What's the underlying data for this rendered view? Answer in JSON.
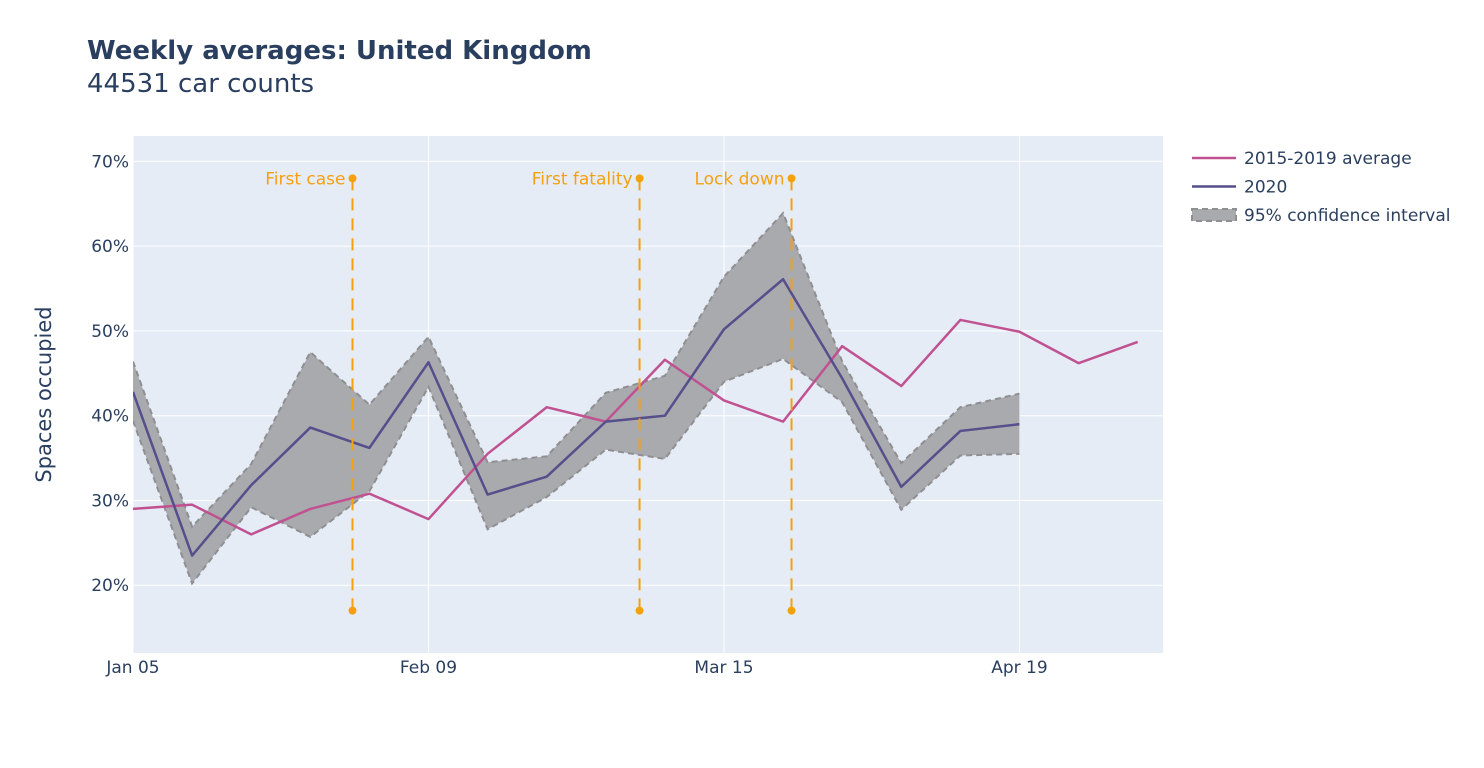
{
  "chart_data": {
    "type": "line",
    "title": "Weekly averages: United Kingdom",
    "subtitle": "44531 car counts",
    "ylabel": "Spaces occupied",
    "xlabel": "",
    "x_tick_labels": [
      "Jan 05",
      "Feb 09",
      "Mar 15",
      "Apr 19"
    ],
    "x_tick_dates": [
      "2020-01-05",
      "2020-02-09",
      "2020-03-15",
      "2020-04-19"
    ],
    "y_tick_labels": [
      "20%",
      "30%",
      "40%",
      "50%",
      "60%",
      "70%"
    ],
    "y_ticks": [
      20,
      30,
      40,
      50,
      60,
      70
    ],
    "xlim": [
      "2020-01-05",
      "2020-05-06"
    ],
    "ylim": [
      12,
      73
    ],
    "grid": true,
    "legend_position": "top-right",
    "colors": {
      "plot_bg": "#e5ecf6",
      "grid": "#ffffff",
      "avg": "#c05292",
      "y2020": "#574e8c",
      "ci_fill": "#a9aaad",
      "ci_edge": "#8f8f92",
      "event": "#f5a00f",
      "text": "#2a3f5f"
    },
    "series": [
      {
        "name": "2015-2019 average",
        "x": [
          "2020-01-05",
          "2020-01-12",
          "2020-01-19",
          "2020-01-26",
          "2020-02-02",
          "2020-02-09",
          "2020-02-16",
          "2020-02-23",
          "2020-03-01",
          "2020-03-08",
          "2020-03-15",
          "2020-03-22",
          "2020-03-29",
          "2020-04-05",
          "2020-04-12",
          "2020-04-19",
          "2020-04-26",
          "2020-05-03"
        ],
        "y": [
          29.0,
          29.5,
          26.0,
          29.0,
          30.8,
          27.8,
          35.5,
          41.0,
          39.3,
          46.6,
          41.8,
          39.3,
          48.2,
          43.5,
          51.3,
          49.9,
          46.2,
          48.7
        ]
      },
      {
        "name": "2020",
        "x": [
          "2020-01-05",
          "2020-01-12",
          "2020-01-19",
          "2020-01-26",
          "2020-02-02",
          "2020-02-09",
          "2020-02-16",
          "2020-02-23",
          "2020-03-01",
          "2020-03-08",
          "2020-03-15",
          "2020-03-22",
          "2020-03-29",
          "2020-04-05",
          "2020-04-12",
          "2020-04-19"
        ],
        "y": [
          42.8,
          23.5,
          31.8,
          38.6,
          36.2,
          46.3,
          30.7,
          32.8,
          39.3,
          40.0,
          50.2,
          56.1,
          44.4,
          31.6,
          38.2,
          39.0
        ]
      },
      {
        "name": "95% confidence interval",
        "x": [
          "2020-01-05",
          "2020-01-12",
          "2020-01-19",
          "2020-01-26",
          "2020-02-02",
          "2020-02-09",
          "2020-02-16",
          "2020-02-23",
          "2020-03-01",
          "2020-03-08",
          "2020-03-15",
          "2020-03-22",
          "2020-03-29",
          "2020-04-05",
          "2020-04-12",
          "2020-04-19"
        ],
        "upper": [
          46.4,
          26.9,
          34.3,
          47.5,
          41.3,
          49.3,
          34.5,
          35.2,
          42.7,
          44.7,
          56.4,
          63.9,
          46.4,
          34.4,
          41.0,
          42.6
        ],
        "lower": [
          39.4,
          20.2,
          29.2,
          25.7,
          31.1,
          43.4,
          26.6,
          30.4,
          36.0,
          34.9,
          44.0,
          46.7,
          41.6,
          28.9,
          35.3,
          35.5
        ]
      }
    ],
    "events": [
      {
        "label": "First case",
        "date": "2020-01-31"
      },
      {
        "label": "First fatality",
        "date": "2020-03-05"
      },
      {
        "label": "Lock down",
        "date": "2020-03-23"
      }
    ],
    "event_marker_y": [
      68,
      17
    ]
  }
}
